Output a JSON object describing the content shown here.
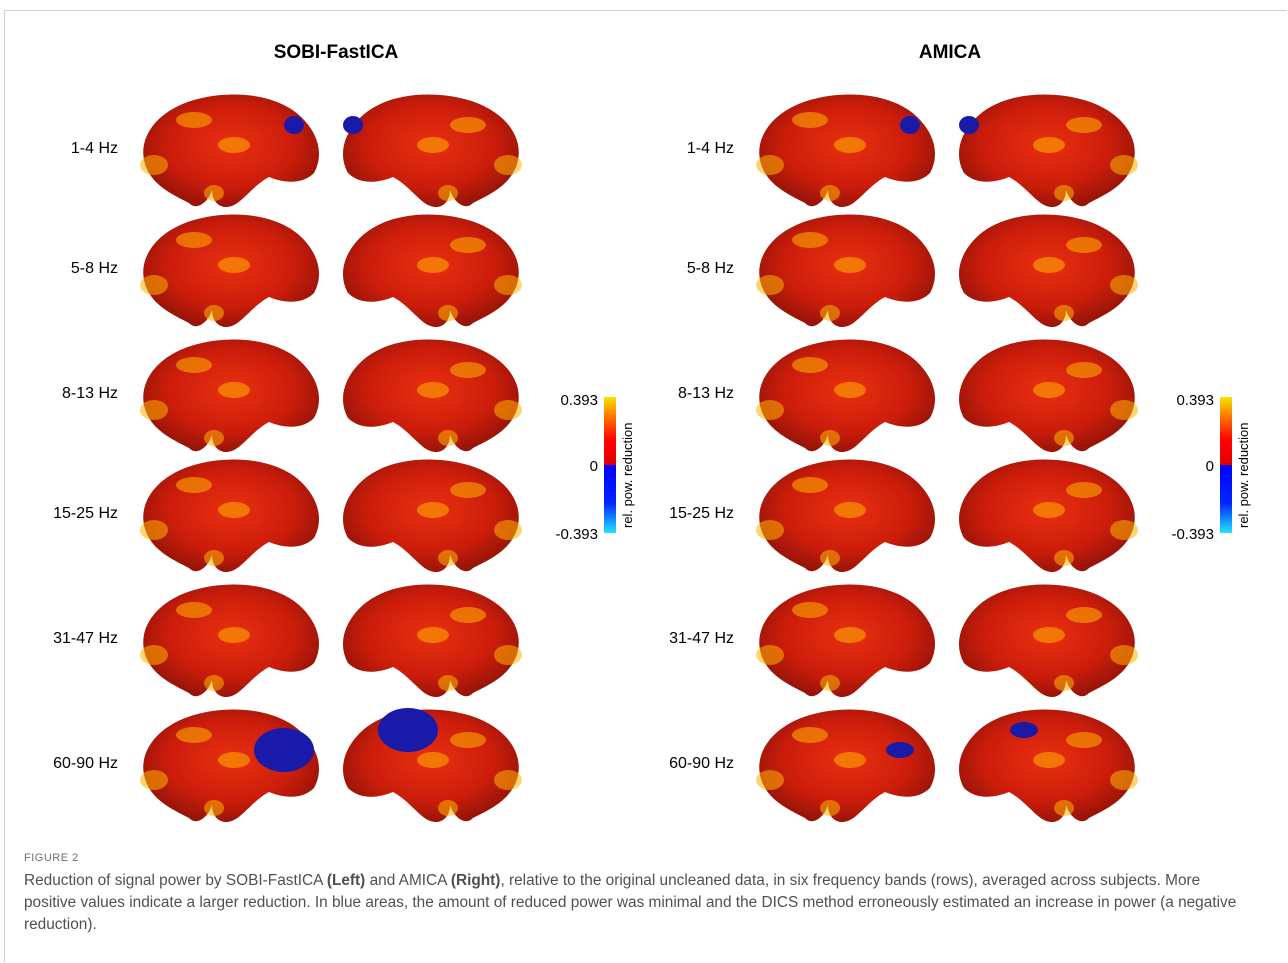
{
  "panels": [
    {
      "title": "SOBI-FastICA"
    },
    {
      "title": "AMICA"
    }
  ],
  "rows": [
    "1-4 Hz",
    "5-8 Hz",
    "8-13 Hz",
    "15-25 Hz",
    "31-47 Hz",
    "60-90 Hz"
  ],
  "colorbar": {
    "max": "0.393",
    "zero": "0",
    "min": "-0.393",
    "label": "rel. pow. reduction",
    "colors": {
      "high": "#f2e600",
      "mid_positive": "#ff0000",
      "low_negative": "#0000ff",
      "min": "#22e4ff"
    }
  },
  "colors": {
    "brain_base": "#c81a0c",
    "hot": "#ffb400",
    "cold": "#1a1aa8"
  },
  "figure": {
    "label": "FIGURE 2",
    "caption_pre": "Reduction of signal power by SOBI-FastICA ",
    "caption_left": "(Left)",
    "caption_mid": " and AMICA ",
    "caption_right": "(Right)",
    "caption_post": ", relative to the original uncleaned data, in six frequency bands (rows), averaged across subjects. More positive values indicate a larger reduction. In blue areas, the amount of reduced power was minimal and the DICS method erroneously estimated an increase in power (a negative reduction)."
  }
}
